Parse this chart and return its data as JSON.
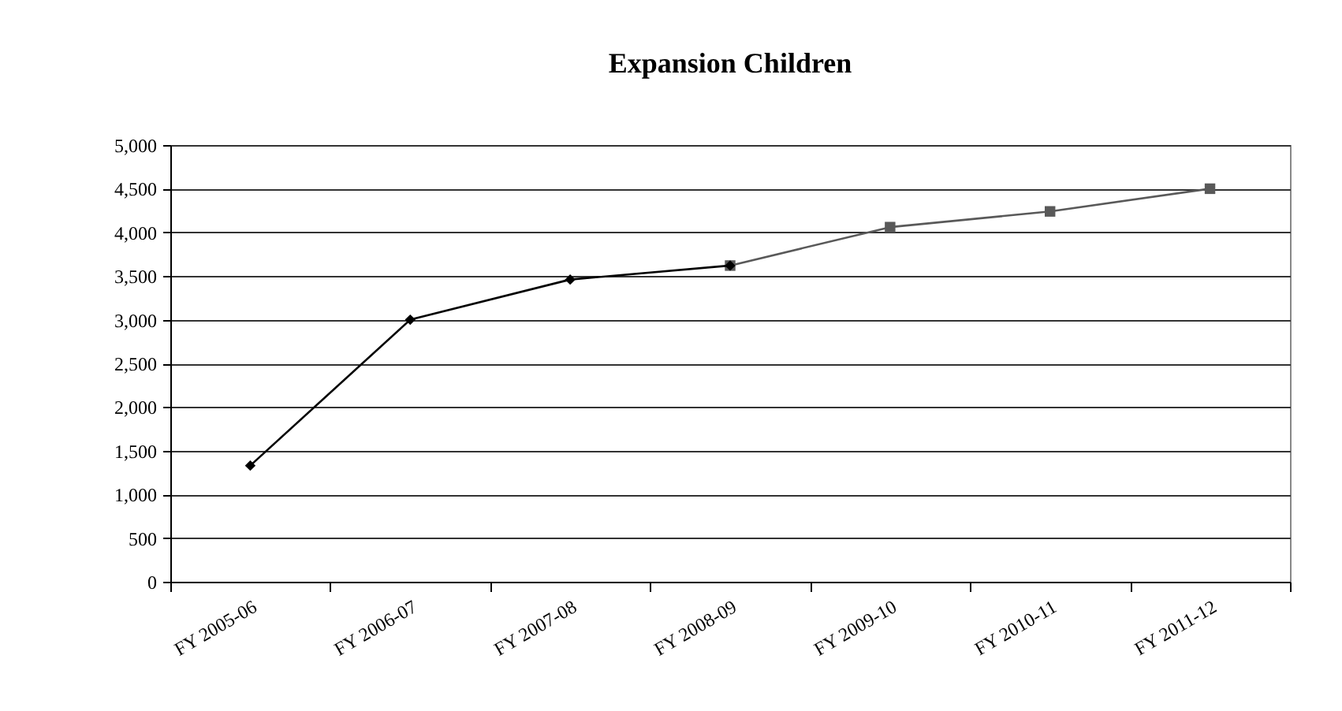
{
  "chart_data": {
    "type": "line",
    "title": "Expansion Children",
    "categories": [
      "FY 2005-06",
      "FY 2006-07",
      "FY 2007-08",
      "FY 2008-09",
      "FY 2009-10",
      "FY 2010-11",
      "FY 2011-12"
    ],
    "series": [
      {
        "color": "#595959",
        "marker": "square",
        "values": [
          null,
          null,
          null,
          3620,
          4060,
          4240,
          4500
        ]
      },
      {
        "color": "#000000",
        "marker": "diamond",
        "values": [
          1330,
          3000,
          3460,
          3620,
          null,
          null,
          null
        ]
      }
    ],
    "ylim": [
      0,
      5000
    ],
    "yticks": [
      0,
      500,
      {
        "value": 1000,
        "label": "1,000"
      },
      {
        "value": 1500,
        "label": "1,500"
      },
      {
        "value": 2000,
        "label": "2,000"
      },
      {
        "value": 2500,
        "label": "2,500"
      },
      {
        "value": 3000,
        "label": "3,000"
      },
      {
        "value": 3500,
        "label": "3,500"
      },
      {
        "value": 4000,
        "label": "4,000"
      },
      {
        "value": 4500,
        "label": "4,500"
      },
      {
        "value": 5000,
        "label": "5,000"
      }
    ],
    "grid": "y"
  }
}
